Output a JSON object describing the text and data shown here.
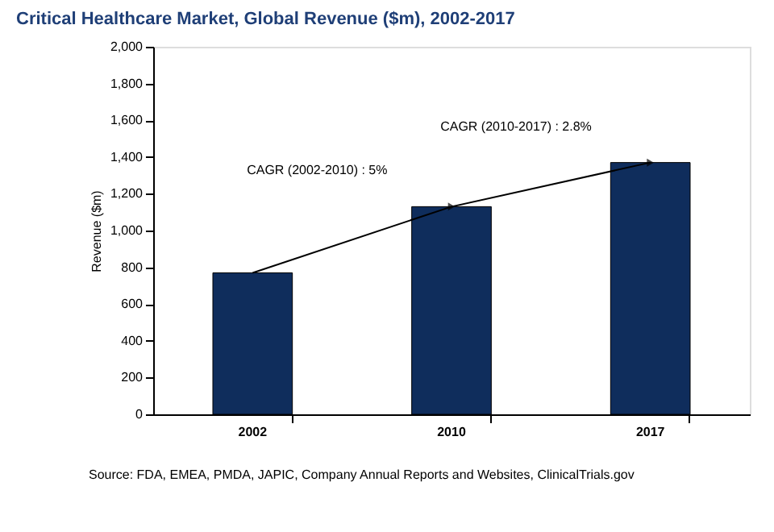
{
  "chart_data": {
    "type": "bar",
    "title": "Critical Healthcare Market, Global Revenue ($m), 2002-2017",
    "ylabel": "Revenue ($m)",
    "categories": [
      "2002",
      "2010",
      "2017"
    ],
    "values": [
      770,
      1130,
      1370
    ],
    "color": "#0f2d5c",
    "ylim": [
      0,
      2000
    ],
    "yticks": [
      0,
      200,
      400,
      600,
      800,
      {
        "value": 1000,
        "label": "1,000"
      },
      {
        "value": 1200,
        "label": "1,200"
      },
      {
        "value": 1400,
        "label": "1,400"
      },
      {
        "value": 1600,
        "label": "1,600"
      },
      {
        "value": 1800,
        "label": "1,800"
      },
      {
        "value": 2000,
        "label": "2,000"
      }
    ],
    "grid": false,
    "annotations": [
      "CAGR (2002-2010) : 5%",
      "CAGR (2010-2017) : 2.8%",
      "Source: FDA, EMEA, PMDA, JAPIC, Company Annual Reports and Websites, ClinicalTrials.gov"
    ]
  }
}
